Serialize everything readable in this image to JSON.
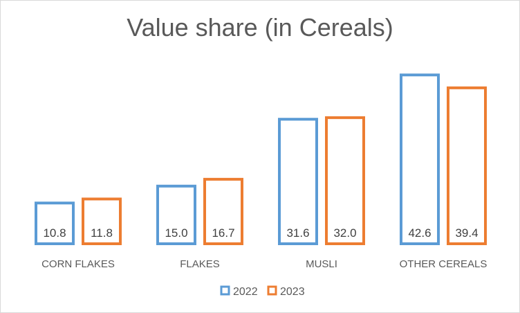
{
  "chart_data": {
    "type": "bar",
    "title": "Value share (in Cereals)",
    "categories": [
      "CORN FLAKES",
      "FLAKES",
      "MUSLI",
      "OTHER CEREALS"
    ],
    "series": [
      {
        "name": "2022",
        "values": [
          10.8,
          15.0,
          31.6,
          42.6
        ],
        "color": "#5b9bd5"
      },
      {
        "name": "2023",
        "values": [
          11.8,
          16.7,
          32.0,
          39.4
        ],
        "color": "#ed7d31"
      }
    ],
    "ylim": [
      0,
      43.5
    ],
    "value_labels": true,
    "value_format": "one-decimal",
    "grid": false,
    "legend_position": "bottom"
  }
}
